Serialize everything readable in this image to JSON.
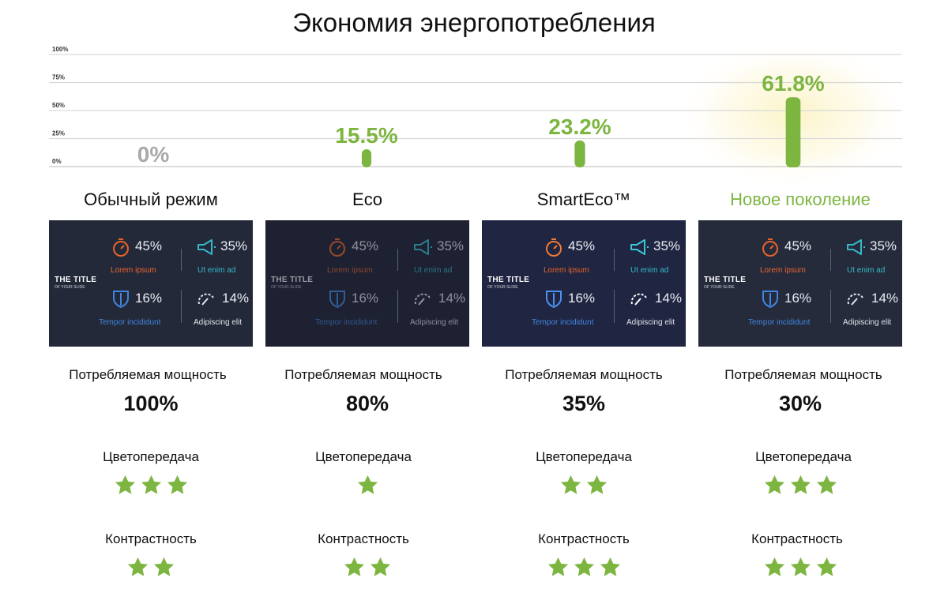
{
  "title": "Экономия энергопотребления",
  "accent_color": "#7db541",
  "zero_color": "#a9a9a9",
  "chart_data": {
    "type": "bar",
    "categories": [
      "Обычный режим",
      "Eco",
      "SmartEco™",
      "Новое поколение"
    ],
    "values": [
      0,
      15.5,
      23.2,
      61.8
    ],
    "data_labels": [
      "0%",
      "15.5%",
      "23.2%",
      "61.8%"
    ],
    "yticks": [
      "0%",
      "25%",
      "50%",
      "75%",
      "100%"
    ],
    "ylim": [
      0,
      100
    ],
    "grid": true,
    "bar_color": "#7db541"
  },
  "modes": [
    {
      "name": "Обычный режим",
      "slide": {
        "title": "THE TITLE",
        "subtitle": "OF YOUR SLIDE",
        "stats": [
          {
            "value": "45%",
            "label": "Lorem ipsum",
            "icon": "stopwatch-icon"
          },
          {
            "value": "35%",
            "label": "Ut enim ad",
            "icon": "megaphone-icon"
          },
          {
            "value": "16%",
            "label": "Tempor incididunt",
            "icon": "shield-icon"
          },
          {
            "value": "14%",
            "label": "Adipiscing elit",
            "icon": "speedometer-icon"
          }
        ]
      },
      "power_label": "Потребляемая мощность",
      "power_value": "100%",
      "color_label": "Цветопередача",
      "color_stars": 3,
      "contrast_label": "Контрастность",
      "contrast_stars": 2
    },
    {
      "name": "Eco",
      "slide": {
        "title": "THE TITLE",
        "subtitle": "OF YOUR SLIDE",
        "stats": [
          {
            "value": "45%",
            "label": "Lorem ipsum",
            "icon": "stopwatch-icon"
          },
          {
            "value": "35%",
            "label": "Ut enim ad",
            "icon": "megaphone-icon"
          },
          {
            "value": "16%",
            "label": "Tempor incididunt",
            "icon": "shield-icon"
          },
          {
            "value": "14%",
            "label": "Adipiscing elit",
            "icon": "speedometer-icon"
          }
        ]
      },
      "power_label": "Потребляемая мощность",
      "power_value": "80%",
      "color_label": "Цветопередача",
      "color_stars": 1,
      "contrast_label": "Контрастность",
      "contrast_stars": 2
    },
    {
      "name": "SmartEco™",
      "slide": {
        "title": "THE TITLE",
        "subtitle": "OF YOUR SLIDE",
        "stats": [
          {
            "value": "45%",
            "label": "Lorem ipsum",
            "icon": "stopwatch-icon"
          },
          {
            "value": "35%",
            "label": "Ut enim ad",
            "icon": "megaphone-icon"
          },
          {
            "value": "16%",
            "label": "Tempor incididunt",
            "icon": "shield-icon"
          },
          {
            "value": "14%",
            "label": "Adipiscing elit",
            "icon": "speedometer-icon"
          }
        ]
      },
      "power_label": "Потребляемая мощность",
      "power_value": "35%",
      "color_label": "Цветопередача",
      "color_stars": 2,
      "contrast_label": "Контрастность",
      "contrast_stars": 3
    },
    {
      "name": "Новое поколение",
      "slide": {
        "title": "THE TITLE",
        "subtitle": "OF YOUR SLIDE",
        "stats": [
          {
            "value": "45%",
            "label": "Lorem ipsum",
            "icon": "stopwatch-icon"
          },
          {
            "value": "35%",
            "label": "Ut enim ad",
            "icon": "megaphone-icon"
          },
          {
            "value": "16%",
            "label": "Tempor incididunt",
            "icon": "shield-icon"
          },
          {
            "value": "14%",
            "label": "Adipiscing elit",
            "icon": "speedometer-icon"
          }
        ]
      },
      "power_label": "Потребляемая мощность",
      "power_value": "30%",
      "color_label": "Цветопередача",
      "color_stars": 3,
      "contrast_label": "Контрастность",
      "contrast_stars": 3
    }
  ]
}
